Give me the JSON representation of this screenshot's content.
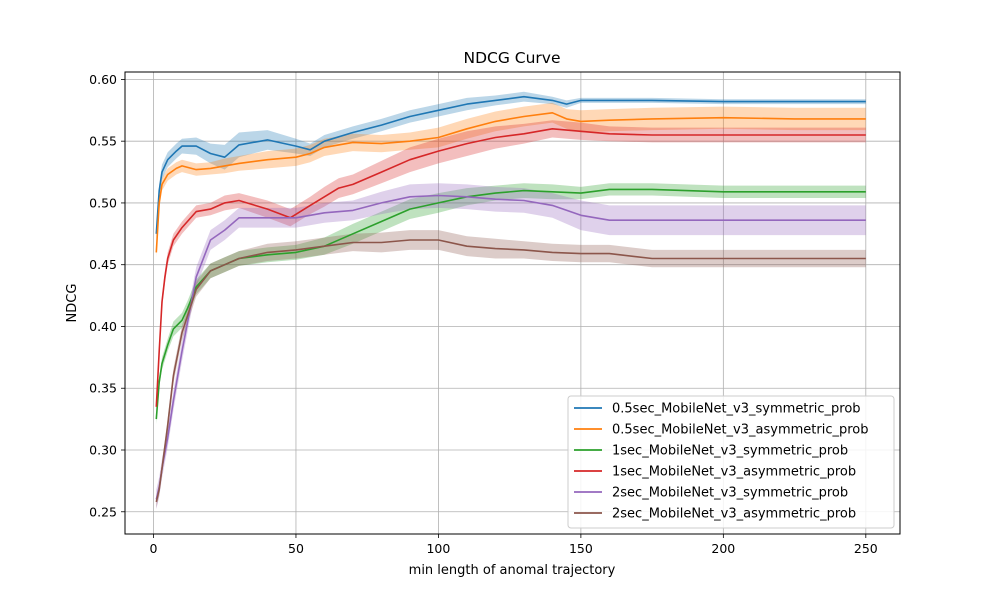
{
  "chart_data": {
    "type": "line",
    "title": "NDCG Curve",
    "xlabel": "min length of anomal trajectory",
    "ylabel": "NDCG",
    "xlim": [
      -10,
      262
    ],
    "ylim": [
      0.232,
      0.606
    ],
    "xticks": [
      0,
      50,
      100,
      150,
      200,
      250
    ],
    "yticks": [
      0.25,
      0.3,
      0.35,
      0.4,
      0.45,
      0.5,
      0.55,
      0.6
    ],
    "grid": true,
    "legend": "lower-right",
    "shaded_band": true,
    "series": [
      {
        "name": "0.5sec_MobileNet_v3_symmetric_prob",
        "color": "#1f77b4",
        "x": [
          1,
          2,
          3,
          5,
          8,
          10,
          15,
          20,
          25,
          30,
          40,
          50,
          55,
          60,
          70,
          80,
          90,
          100,
          110,
          120,
          130,
          140,
          145,
          150,
          160,
          175,
          200,
          225,
          250
        ],
        "y": [
          0.475,
          0.51,
          0.525,
          0.535,
          0.542,
          0.546,
          0.546,
          0.54,
          0.537,
          0.547,
          0.551,
          0.546,
          0.543,
          0.55,
          0.557,
          0.563,
          0.57,
          0.575,
          0.58,
          0.583,
          0.586,
          0.583,
          0.58,
          0.583,
          0.583,
          0.583,
          0.582,
          0.582,
          0.582
        ],
        "band": [
          0.004,
          0.005,
          0.006,
          0.006,
          0.006,
          0.006,
          0.007,
          0.008,
          0.01,
          0.01,
          0.008,
          0.006,
          0.005,
          0.005,
          0.005,
          0.005,
          0.005,
          0.005,
          0.005,
          0.004,
          0.004,
          0.003,
          0.003,
          0.002,
          0.002,
          0.002,
          0.002,
          0.002,
          0.002
        ]
      },
      {
        "name": "0.5sec_MobileNet_v3_asymmetric_prob",
        "color": "#ff7f0e",
        "x": [
          1,
          2,
          3,
          5,
          8,
          10,
          15,
          20,
          25,
          30,
          40,
          50,
          55,
          60,
          70,
          80,
          90,
          100,
          110,
          120,
          130,
          140,
          145,
          150,
          160,
          175,
          200,
          225,
          250
        ],
        "y": [
          0.46,
          0.5,
          0.515,
          0.523,
          0.528,
          0.53,
          0.527,
          0.528,
          0.53,
          0.532,
          0.535,
          0.537,
          0.54,
          0.545,
          0.549,
          0.548,
          0.55,
          0.553,
          0.56,
          0.566,
          0.57,
          0.573,
          0.568,
          0.566,
          0.567,
          0.568,
          0.569,
          0.568,
          0.568
        ],
        "band": [
          0.004,
          0.005,
          0.005,
          0.005,
          0.005,
          0.005,
          0.005,
          0.005,
          0.006,
          0.006,
          0.007,
          0.007,
          0.007,
          0.007,
          0.007,
          0.007,
          0.007,
          0.008,
          0.008,
          0.008,
          0.008,
          0.008,
          0.008,
          0.009,
          0.009,
          0.009,
          0.009,
          0.009,
          0.009
        ]
      },
      {
        "name": "1sec_MobileNet_v3_symmetric_prob",
        "color": "#2ca02c",
        "x": [
          1,
          2,
          3,
          5,
          7,
          10,
          12,
          15,
          20,
          25,
          30,
          40,
          50,
          60,
          70,
          80,
          90,
          100,
          110,
          120,
          130,
          140,
          150,
          160,
          175,
          200,
          225,
          250
        ],
        "y": [
          0.325,
          0.355,
          0.37,
          0.385,
          0.398,
          0.405,
          0.415,
          0.432,
          0.445,
          0.45,
          0.455,
          0.458,
          0.46,
          0.465,
          0.475,
          0.485,
          0.495,
          0.5,
          0.505,
          0.508,
          0.51,
          0.509,
          0.508,
          0.511,
          0.511,
          0.509,
          0.509,
          0.509
        ],
        "band": [
          0.004,
          0.004,
          0.005,
          0.005,
          0.006,
          0.006,
          0.006,
          0.006,
          0.006,
          0.006,
          0.006,
          0.006,
          0.006,
          0.007,
          0.008,
          0.008,
          0.008,
          0.008,
          0.007,
          0.006,
          0.006,
          0.006,
          0.005,
          0.005,
          0.005,
          0.005,
          0.005,
          0.005
        ]
      },
      {
        "name": "1sec_MobileNet_v3_asymmetric_prob",
        "color": "#d62728",
        "x": [
          1,
          2,
          3,
          4,
          5,
          7,
          10,
          15,
          20,
          25,
          30,
          40,
          48,
          55,
          60,
          65,
          70,
          80,
          90,
          100,
          110,
          120,
          130,
          140,
          150,
          160,
          175,
          200,
          225,
          250
        ],
        "y": [
          0.335,
          0.38,
          0.42,
          0.44,
          0.455,
          0.47,
          0.48,
          0.493,
          0.495,
          0.5,
          0.502,
          0.495,
          0.488,
          0.498,
          0.505,
          0.512,
          0.515,
          0.525,
          0.535,
          0.542,
          0.548,
          0.553,
          0.556,
          0.56,
          0.558,
          0.556,
          0.555,
          0.555,
          0.555,
          0.555
        ],
        "band": [
          0.004,
          0.005,
          0.005,
          0.005,
          0.005,
          0.005,
          0.005,
          0.005,
          0.005,
          0.006,
          0.006,
          0.007,
          0.007,
          0.007,
          0.008,
          0.008,
          0.008,
          0.009,
          0.01,
          0.01,
          0.01,
          0.009,
          0.008,
          0.007,
          0.007,
          0.006,
          0.006,
          0.006,
          0.006,
          0.006
        ]
      },
      {
        "name": "2sec_MobileNet_v3_symmetric_prob",
        "color": "#9467bd",
        "x": [
          1,
          2,
          3,
          5,
          7,
          10,
          15,
          20,
          25,
          30,
          40,
          50,
          60,
          70,
          80,
          90,
          100,
          110,
          120,
          130,
          140,
          150,
          160,
          175,
          200,
          225,
          250
        ],
        "y": [
          0.26,
          0.27,
          0.285,
          0.31,
          0.34,
          0.38,
          0.44,
          0.47,
          0.478,
          0.488,
          0.488,
          0.488,
          0.492,
          0.494,
          0.5,
          0.505,
          0.506,
          0.505,
          0.503,
          0.502,
          0.498,
          0.49,
          0.486,
          0.486,
          0.486,
          0.486,
          0.486
        ],
        "band": [
          0.008,
          0.008,
          0.008,
          0.008,
          0.008,
          0.008,
          0.008,
          0.008,
          0.008,
          0.008,
          0.008,
          0.008,
          0.008,
          0.008,
          0.009,
          0.01,
          0.01,
          0.01,
          0.01,
          0.01,
          0.01,
          0.012,
          0.012,
          0.012,
          0.012,
          0.012,
          0.012
        ]
      },
      {
        "name": "2sec_MobileNet_v3_asymmetric_prob",
        "color": "#8c564b",
        "x": [
          1,
          2,
          3,
          5,
          7,
          10,
          15,
          20,
          25,
          30,
          40,
          50,
          60,
          70,
          80,
          90,
          100,
          110,
          120,
          130,
          140,
          150,
          160,
          175,
          200,
          225,
          250
        ],
        "y": [
          0.258,
          0.268,
          0.285,
          0.32,
          0.36,
          0.395,
          0.43,
          0.445,
          0.45,
          0.455,
          0.46,
          0.462,
          0.465,
          0.468,
          0.468,
          0.47,
          0.47,
          0.465,
          0.463,
          0.462,
          0.46,
          0.459,
          0.459,
          0.455,
          0.455,
          0.455,
          0.455
        ],
        "band": [
          0.005,
          0.005,
          0.005,
          0.006,
          0.006,
          0.006,
          0.006,
          0.006,
          0.006,
          0.006,
          0.007,
          0.007,
          0.007,
          0.007,
          0.008,
          0.008,
          0.008,
          0.008,
          0.008,
          0.007,
          0.007,
          0.007,
          0.007,
          0.007,
          0.007,
          0.007,
          0.007
        ]
      }
    ]
  }
}
